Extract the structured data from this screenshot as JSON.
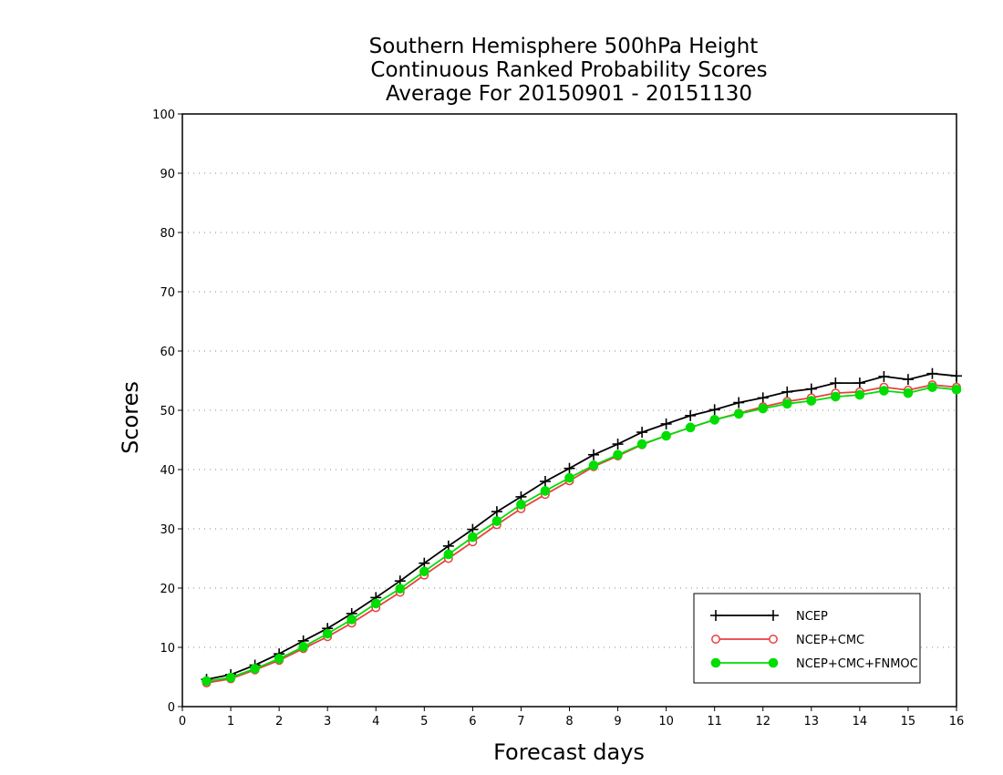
{
  "chart_data": {
    "type": "line",
    "title": [
      "Southern Hemisphere 500hPa Height",
      "Continuous Ranked Probability Scores",
      "Average For 20150901 - 20151130"
    ],
    "xlabel": "Forecast days",
    "ylabel": "Scores",
    "xlim": [
      0,
      16
    ],
    "ylim": [
      0,
      100
    ],
    "xticks": [
      "0",
      "1",
      "2",
      "3",
      "4",
      "5",
      "6",
      "7",
      "8",
      "9",
      "10",
      "11",
      "12",
      "13",
      "14",
      "15",
      "16"
    ],
    "yticks": [
      "0",
      "10",
      "20",
      "30",
      "40",
      "50",
      "60",
      "70",
      "80",
      "90",
      "100"
    ],
    "grid": true,
    "legend_position": "bottom-right",
    "x": [
      0.5,
      1,
      1.5,
      2,
      2.5,
      3,
      3.5,
      4,
      4.5,
      5,
      5.5,
      6,
      6.5,
      7,
      7.5,
      8,
      8.5,
      9,
      9.5,
      10,
      10.5,
      11,
      11.5,
      12,
      12.5,
      13,
      13.5,
      14,
      14.5,
      15,
      15.5,
      16
    ],
    "series": [
      {
        "name": "NCEP",
        "color": "#000000",
        "marker": "plus",
        "values": [
          4.6,
          5.4,
          7.0,
          8.9,
          11.1,
          13.2,
          15.7,
          18.4,
          21.2,
          24.2,
          27.1,
          29.9,
          32.9,
          35.4,
          38.0,
          40.2,
          42.5,
          44.3,
          46.3,
          47.7,
          49.1,
          50.1,
          51.3,
          52.1,
          53.1,
          53.6,
          54.6,
          54.6,
          55.7,
          55.2,
          56.2,
          55.8
        ]
      },
      {
        "name": "NCEP+CMC",
        "color": "#e84040",
        "marker": "open-circle",
        "values": [
          4.0,
          4.7,
          6.2,
          7.8,
          9.8,
          11.8,
          14.1,
          16.7,
          19.3,
          22.2,
          25.0,
          27.8,
          30.7,
          33.4,
          35.8,
          38.1,
          40.5,
          42.3,
          44.2,
          45.7,
          47.1,
          48.4,
          49.5,
          50.6,
          51.5,
          52.1,
          52.9,
          53.1,
          53.9,
          53.4,
          54.3,
          53.9
        ]
      },
      {
        "name": "NCEP+CMC+FNMOC",
        "color": "#00dd00",
        "marker": "filled-circle",
        "values": [
          4.3,
          4.9,
          6.4,
          8.1,
          10.1,
          12.3,
          14.7,
          17.4,
          19.9,
          22.8,
          25.7,
          28.6,
          31.3,
          34.1,
          36.4,
          38.6,
          40.7,
          42.5,
          44.3,
          45.7,
          47.1,
          48.4,
          49.4,
          50.3,
          51.1,
          51.6,
          52.3,
          52.6,
          53.3,
          52.9,
          53.9,
          53.5
        ]
      }
    ]
  }
}
